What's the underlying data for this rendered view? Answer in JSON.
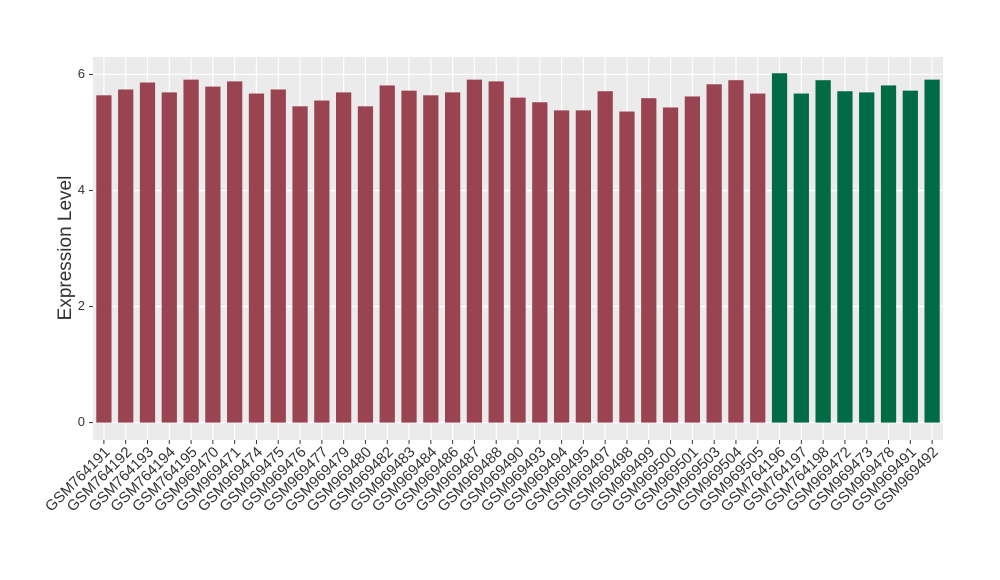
{
  "chart_data": {
    "type": "bar",
    "y_label": "Expression Level",
    "categories": [
      "GSM764191",
      "GSM764192",
      "GSM764193",
      "GSM764194",
      "GSM764195",
      "GSM969470",
      "GSM969471",
      "GSM969474",
      "GSM969475",
      "GSM969476",
      "GSM969477",
      "GSM969479",
      "GSM969480",
      "GSM969482",
      "GSM969483",
      "GSM969484",
      "GSM969486",
      "GSM969487",
      "GSM969488",
      "GSM969490",
      "GSM969493",
      "GSM969494",
      "GSM969495",
      "GSM969497",
      "GSM969498",
      "GSM969499",
      "GSM969500",
      "GSM969501",
      "GSM969503",
      "GSM969504",
      "GSM969505",
      "GSM764196",
      "GSM764197",
      "GSM764198",
      "GSM969472",
      "GSM969473",
      "GSM969478",
      "GSM969491",
      "GSM969492"
    ],
    "values": [
      5.64,
      5.74,
      5.86,
      5.69,
      5.91,
      5.79,
      5.88,
      5.67,
      5.74,
      5.45,
      5.55,
      5.69,
      5.45,
      5.81,
      5.72,
      5.64,
      5.69,
      5.91,
      5.88,
      5.6,
      5.52,
      5.38,
      5.38,
      5.71,
      5.36,
      5.59,
      5.43,
      5.62,
      5.83,
      5.9,
      5.67,
      6.02,
      5.67,
      5.9,
      5.71,
      5.69,
      5.81,
      5.72,
      5.91
    ],
    "colors": [
      "#9a4451",
      "#9a4451",
      "#9a4451",
      "#9a4451",
      "#9a4451",
      "#9a4451",
      "#9a4451",
      "#9a4451",
      "#9a4451",
      "#9a4451",
      "#9a4451",
      "#9a4451",
      "#9a4451",
      "#9a4451",
      "#9a4451",
      "#9a4451",
      "#9a4451",
      "#9a4451",
      "#9a4451",
      "#9a4451",
      "#9a4451",
      "#9a4451",
      "#9a4451",
      "#9a4451",
      "#9a4451",
      "#9a4451",
      "#9a4451",
      "#9a4451",
      "#9a4451",
      "#9a4451",
      "#9a4451",
      "#006b45",
      "#006b45",
      "#006b45",
      "#006b45",
      "#006b45",
      "#006b45",
      "#006b45",
      "#006b45"
    ],
    "ylim": [
      -0.3,
      6.3
    ],
    "yticks": [
      0,
      2,
      4,
      6
    ],
    "grid": true
  }
}
